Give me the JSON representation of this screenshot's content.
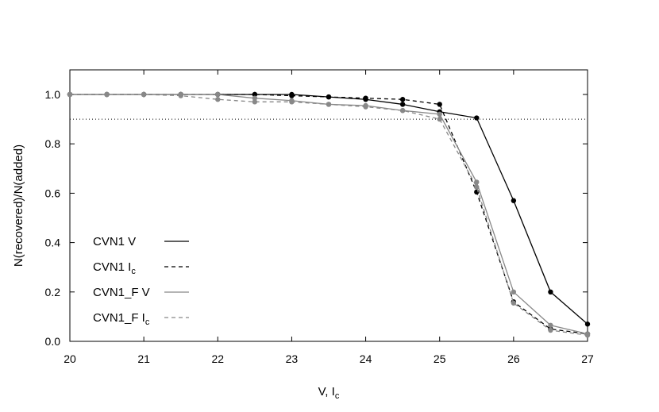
{
  "chart_data": {
    "type": "line",
    "xlabel": "V, I",
    "xlabel_sub": "c",
    "ylabel": "N(recovered)/N(added)",
    "xlim": [
      20,
      27
    ],
    "ylim": [
      0,
      1.1
    ],
    "x_ticks": [
      "20",
      "21",
      "22",
      "23",
      "24",
      "25",
      "26",
      "27"
    ],
    "y_ticks": [
      "0.0",
      "0.2",
      "0.4",
      "0.6",
      "0.8",
      "1.0"
    ],
    "reference_line": {
      "y": 0.9,
      "style": "dotted",
      "color": "#000000"
    },
    "legend_placement": "bottom-left",
    "series": [
      {
        "name": "CVN1 V",
        "color": "#000000",
        "dash": "solid",
        "x": [
          20,
          20.5,
          21,
          21.5,
          22,
          22.5,
          23,
          23.5,
          24,
          24.5,
          25,
          25.5,
          26,
          26.5,
          27
        ],
        "y": [
          1.0,
          1.0,
          1.0,
          1.0,
          1.0,
          1.0,
          1.0,
          0.99,
          0.98,
          0.96,
          0.93,
          0.905,
          0.57,
          0.2,
          0.07
        ]
      },
      {
        "name": "CVN1 I",
        "name_sub": "c",
        "color": "#000000",
        "dash": "dashed",
        "x": [
          20,
          20.5,
          21,
          21.5,
          22,
          22.5,
          23,
          23.5,
          24,
          24.5,
          25,
          25.5,
          26,
          26.5,
          27
        ],
        "y": [
          1.0,
          1.0,
          1.0,
          1.0,
          1.0,
          1.0,
          0.995,
          0.99,
          0.985,
          0.98,
          0.96,
          0.605,
          0.16,
          0.05,
          0.03
        ]
      },
      {
        "name": "CVN1_F V",
        "color": "#888888",
        "dash": "solid",
        "x": [
          20,
          20.5,
          21,
          21.5,
          22,
          22.5,
          23,
          23.5,
          24,
          24.5,
          25,
          25.5,
          26,
          26.5,
          27
        ],
        "y": [
          1.0,
          1.0,
          1.0,
          1.0,
          1.0,
          0.985,
          0.975,
          0.96,
          0.955,
          0.935,
          0.92,
          0.645,
          0.2,
          0.065,
          0.03
        ]
      },
      {
        "name": "CVN1_F I",
        "name_sub": "c",
        "color": "#888888",
        "dash": "dashed",
        "x": [
          20,
          20.5,
          21,
          21.5,
          22,
          22.5,
          23,
          23.5,
          24,
          24.5,
          25,
          25.5,
          26,
          26.5,
          27
        ],
        "y": [
          1.0,
          1.0,
          1.0,
          0.995,
          0.98,
          0.97,
          0.97,
          0.96,
          0.95,
          0.935,
          0.9,
          0.625,
          0.155,
          0.045,
          0.025
        ]
      }
    ]
  }
}
